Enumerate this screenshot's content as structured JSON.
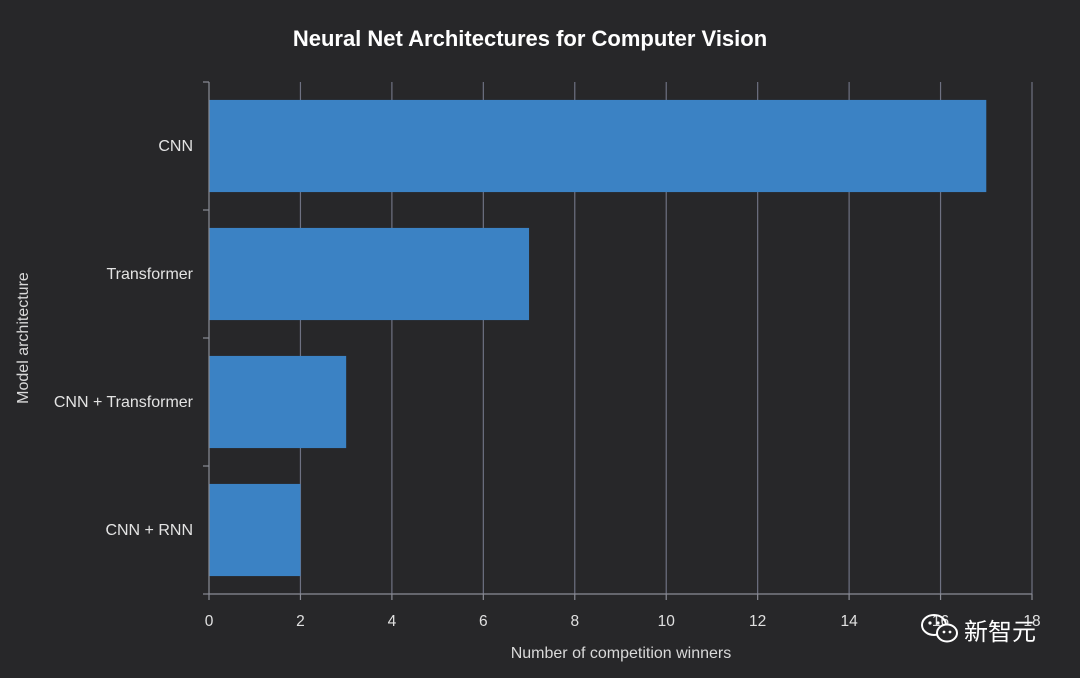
{
  "chart_data": {
    "type": "bar",
    "orientation": "horizontal",
    "title": "Neural Net Architectures for Computer Vision",
    "xlabel": "Number of competition winners",
    "ylabel": "Model architecture",
    "categories": [
      "CNN",
      "Transformer",
      "CNN + Transformer",
      "CNN + RNN"
    ],
    "values": [
      17,
      7,
      3,
      2
    ],
    "xlim": [
      0,
      18
    ],
    "xticks": [
      0,
      2,
      4,
      6,
      8,
      10,
      12,
      14,
      16,
      18
    ],
    "grid": true,
    "bar_color": "#3b82c4",
    "background": "#272729"
  },
  "watermark": {
    "text": "新智元",
    "icon": "wechat-icon"
  }
}
